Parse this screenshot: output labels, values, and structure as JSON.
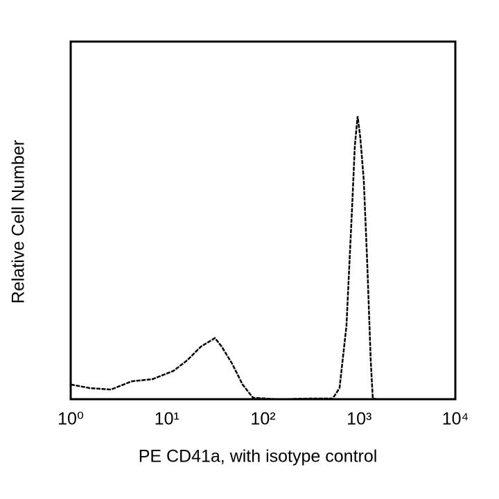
{
  "chart_data": {
    "type": "line",
    "xlabel": "PE CD41a, with isotype control",
    "ylabel": "Relative Cell Number",
    "xscale": "log",
    "xlim": [
      1,
      10000
    ],
    "xticks": [
      {
        "value": 1,
        "label": "10⁰"
      },
      {
        "value": 10,
        "label": "10¹"
      },
      {
        "value": 100,
        "label": "10²"
      },
      {
        "value": 1000,
        "label": "10³"
      },
      {
        "value": 10000,
        "label": "10⁴"
      }
    ],
    "ylim": [
      0,
      100
    ],
    "color": "#000000",
    "x": [
      1,
      1.59,
      2.62,
      4.31,
      7.09,
      11.7,
      16.3,
      22.6,
      31.6,
      37.2,
      47.8,
      61.3,
      78.6,
      141,
      322,
      530,
      625,
      738,
      843,
      901,
      964,
      1029,
      1117,
      1214,
      1319,
      1386,
      1559,
      10000
    ],
    "values": [
      4.1,
      3.1,
      2.7,
      5.0,
      5.6,
      7.9,
      10.9,
      14.7,
      17.1,
      14.7,
      9.9,
      4.1,
      0.4,
      0,
      0.2,
      0.2,
      3.1,
      20.5,
      53.5,
      70.9,
      79.1,
      72.9,
      61.2,
      38,
      10.9,
      0.2,
      0,
      0
    ]
  }
}
